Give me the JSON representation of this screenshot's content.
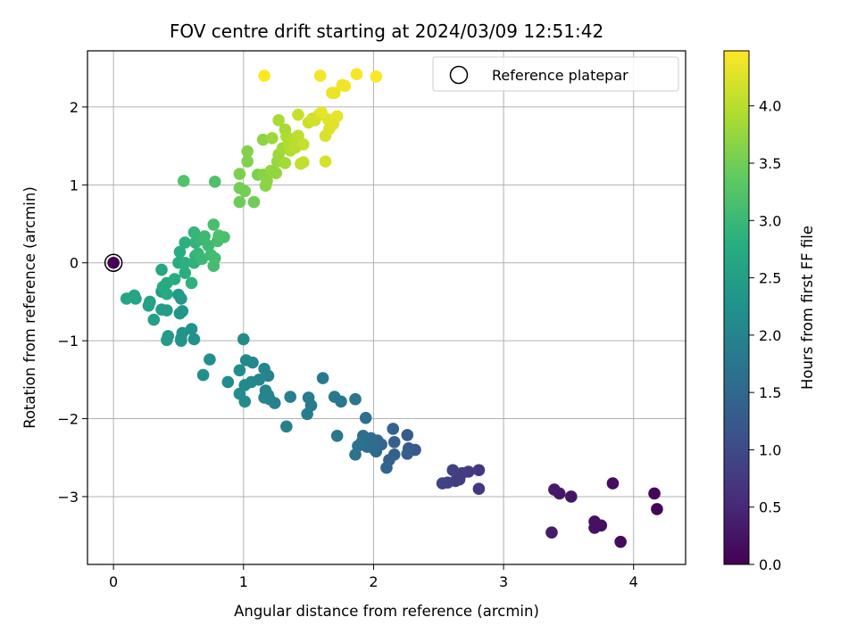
{
  "chart_data": {
    "type": "scatter",
    "title": "FOV centre drift starting at 2024/03/09 12:51:42",
    "xlabel": "Angular distance from reference (arcmin)",
    "ylabel": "Rotation from reference (arcmin)",
    "xlim": [
      -0.2,
      4.4
    ],
    "ylim": [
      -3.87,
      2.72
    ],
    "xticks": [
      "0",
      "1",
      "2",
      "3",
      "4"
    ],
    "xtick_values": [
      0,
      1,
      2,
      3,
      4
    ],
    "yticks": [
      "−3",
      "−2",
      "−1",
      "0",
      "1",
      "2"
    ],
    "ytick_values": [
      -3,
      -2,
      -1,
      0,
      1,
      2
    ],
    "grid": true,
    "legend": {
      "placement": "top-right",
      "entries": [
        "Reference platepar"
      ]
    },
    "reference_point": {
      "x": 0,
      "y": 0
    },
    "colormap": "viridis",
    "colorbar": {
      "label": "Hours from first FF file",
      "range": [
        0,
        4.48
      ],
      "ticks": [
        "0.0",
        "0.5",
        "1.0",
        "1.5",
        "2.0",
        "2.5",
        "3.0",
        "3.5",
        "4.0"
      ],
      "tick_values": [
        0,
        0.5,
        1.0,
        1.5,
        2.0,
        2.5,
        3.0,
        3.5,
        4.0
      ]
    },
    "points": [
      [
        0.0,
        0.0,
        0.0
      ],
      [
        4.18,
        -3.16,
        0.05
      ],
      [
        4.16,
        -2.96,
        0.08
      ],
      [
        3.9,
        -3.58,
        0.12
      ],
      [
        3.84,
        -2.83,
        0.15
      ],
      [
        3.75,
        -3.37,
        0.18
      ],
      [
        3.7,
        -3.32,
        0.2
      ],
      [
        3.7,
        -3.4,
        0.22
      ],
      [
        3.52,
        -3.0,
        0.25
      ],
      [
        3.43,
        -2.96,
        0.28
      ],
      [
        3.39,
        -2.91,
        0.3
      ],
      [
        3.37,
        -3.46,
        0.33
      ],
      [
        2.81,
        -2.66,
        0.7
      ],
      [
        2.81,
        -2.9,
        0.72
      ],
      [
        2.73,
        -2.68,
        0.75
      ],
      [
        2.68,
        -2.7,
        0.78
      ],
      [
        2.66,
        -2.78,
        0.8
      ],
      [
        2.63,
        -2.8,
        0.82
      ],
      [
        2.61,
        -2.66,
        0.85
      ],
      [
        2.57,
        -2.82,
        0.88
      ],
      [
        2.53,
        -2.83,
        0.9
      ],
      [
        2.32,
        -2.4,
        1.25
      ],
      [
        2.27,
        -2.38,
        1.28
      ],
      [
        2.26,
        -2.21,
        1.3
      ],
      [
        2.26,
        -2.45,
        1.32
      ],
      [
        2.16,
        -2.3,
        1.35
      ],
      [
        2.16,
        -2.46,
        1.38
      ],
      [
        2.15,
        -2.13,
        1.4
      ],
      [
        2.12,
        -2.53,
        1.42
      ],
      [
        2.1,
        -2.63,
        1.45
      ],
      [
        2.06,
        -2.33,
        1.47
      ],
      [
        2.03,
        -2.28,
        1.5
      ],
      [
        2.02,
        -2.42,
        1.52
      ],
      [
        2.0,
        -2.38,
        1.55
      ],
      [
        1.98,
        -2.25,
        1.57
      ],
      [
        1.95,
        -2.36,
        1.6
      ],
      [
        1.94,
        -1.99,
        1.62
      ],
      [
        1.92,
        -2.22,
        1.64
      ],
      [
        1.91,
        -2.3,
        1.66
      ],
      [
        1.88,
        -2.35,
        1.68
      ],
      [
        1.86,
        -2.46,
        1.7
      ],
      [
        1.86,
        -1.75,
        1.73
      ],
      [
        1.75,
        -1.78,
        1.75
      ],
      [
        1.72,
        -2.22,
        1.77
      ],
      [
        1.7,
        -1.72,
        1.79
      ],
      [
        1.61,
        -1.48,
        1.81
      ],
      [
        1.52,
        -1.83,
        1.83
      ],
      [
        1.5,
        -1.73,
        1.85
      ],
      [
        1.49,
        -1.94,
        1.87
      ],
      [
        1.36,
        -1.72,
        1.89
      ],
      [
        1.33,
        -2.1,
        1.91
      ],
      [
        1.24,
        -1.8,
        1.93
      ],
      [
        1.2,
        -1.75,
        1.95
      ],
      [
        1.19,
        -1.7,
        1.97
      ],
      [
        1.19,
        -1.45,
        1.99
      ],
      [
        1.17,
        -1.64,
        2.0
      ],
      [
        1.16,
        -1.36,
        2.02
      ],
      [
        1.16,
        -1.73,
        2.03
      ],
      [
        1.12,
        -1.5,
        2.05
      ],
      [
        1.07,
        -1.28,
        2.06
      ],
      [
        1.06,
        -1.53,
        2.08
      ],
      [
        1.02,
        -1.25,
        2.09
      ],
      [
        1.01,
        -1.78,
        2.11
      ],
      [
        1.01,
        -1.57,
        2.12
      ],
      [
        1.0,
        -0.98,
        2.14
      ],
      [
        0.97,
        -1.68,
        2.15
      ],
      [
        0.97,
        -1.38,
        2.17
      ],
      [
        0.88,
        -1.53,
        2.18
      ],
      [
        0.74,
        -1.24,
        2.2
      ],
      [
        0.69,
        -1.44,
        2.22
      ],
      [
        0.62,
        -0.98,
        2.24
      ],
      [
        0.6,
        -0.85,
        2.26
      ],
      [
        0.53,
        -0.9,
        2.28
      ],
      [
        0.52,
        -0.97,
        2.3
      ],
      [
        0.52,
        -1.0,
        2.32
      ],
      [
        0.51,
        -0.65,
        2.34
      ],
      [
        0.53,
        -0.62,
        2.36
      ],
      [
        0.52,
        -0.46,
        2.38
      ],
      [
        0.5,
        -0.41,
        2.4
      ],
      [
        0.42,
        -0.94,
        2.42
      ],
      [
        0.41,
        -0.99,
        2.44
      ],
      [
        0.41,
        -0.61,
        2.46
      ],
      [
        0.37,
        -0.6,
        2.48
      ],
      [
        0.37,
        -0.37,
        2.5
      ],
      [
        0.31,
        -0.73,
        2.52
      ],
      [
        0.28,
        -0.5,
        2.54
      ],
      [
        0.27,
        -0.55,
        2.56
      ],
      [
        0.17,
        -0.46,
        2.58
      ],
      [
        0.16,
        -0.42,
        2.6
      ],
      [
        0.1,
        -0.46,
        2.62
      ],
      [
        0.37,
        -0.09,
        2.65
      ],
      [
        0.41,
        -0.26,
        2.68
      ],
      [
        0.38,
        -0.31,
        2.7
      ],
      [
        0.41,
        -0.4,
        2.72
      ],
      [
        0.47,
        -0.21,
        2.74
      ],
      [
        0.5,
        0.0,
        2.76
      ],
      [
        0.51,
        0.14,
        2.78
      ],
      [
        0.55,
        -0.13,
        2.8
      ],
      [
        0.55,
        0.0,
        2.82
      ],
      [
        0.55,
        0.26,
        2.84
      ],
      [
        0.6,
        -0.26,
        2.86
      ],
      [
        0.62,
        0.0,
        2.88
      ],
      [
        0.63,
        0.09,
        2.9
      ],
      [
        0.63,
        0.26,
        2.92
      ],
      [
        0.62,
        0.39,
        2.94
      ],
      [
        0.65,
        0.12,
        2.96
      ],
      [
        0.68,
        0.3,
        2.98
      ],
      [
        0.68,
        0.05,
        3.0
      ],
      [
        0.7,
        0.34,
        3.02
      ],
      [
        0.73,
        0.22,
        3.04
      ],
      [
        0.75,
        0.1,
        3.06
      ],
      [
        0.78,
        0.06,
        3.08
      ],
      [
        0.77,
        -0.04,
        3.1
      ],
      [
        0.8,
        0.28,
        3.12
      ],
      [
        0.77,
        0.49,
        3.14
      ],
      [
        0.85,
        0.33,
        3.16
      ],
      [
        0.81,
        0.35,
        3.18
      ],
      [
        0.78,
        1.04,
        3.2
      ],
      [
        0.54,
        1.05,
        3.22
      ],
      [
        0.97,
        0.78,
        3.45
      ],
      [
        1.08,
        0.78,
        3.48
      ],
      [
        0.97,
        0.96,
        3.5
      ],
      [
        1.01,
        0.92,
        3.52
      ],
      [
        1.11,
        1.13,
        3.55
      ],
      [
        0.97,
        1.14,
        3.58
      ],
      [
        1.03,
        1.3,
        3.6
      ],
      [
        1.03,
        1.43,
        3.62
      ],
      [
        1.15,
        1.13,
        3.65
      ],
      [
        1.17,
        0.99,
        3.67
      ],
      [
        1.18,
        1.05,
        3.69
      ],
      [
        1.15,
        1.58,
        3.71
      ],
      [
        1.21,
        1.18,
        3.73
      ],
      [
        1.25,
        1.15,
        3.75
      ],
      [
        1.26,
        1.3,
        3.77
      ],
      [
        1.27,
        1.39,
        3.79
      ],
      [
        1.22,
        1.6,
        3.81
      ],
      [
        1.3,
        1.47,
        3.83
      ],
      [
        1.32,
        1.28,
        3.85
      ],
      [
        1.32,
        1.71,
        3.87
      ],
      [
        1.27,
        1.83,
        3.89
      ],
      [
        1.33,
        1.62,
        3.91
      ],
      [
        1.35,
        1.52,
        3.93
      ],
      [
        1.36,
        1.44,
        3.95
      ],
      [
        1.38,
        1.59,
        3.97
      ],
      [
        1.4,
        1.55,
        3.99
      ],
      [
        1.4,
        1.48,
        4.01
      ],
      [
        1.42,
        1.63,
        4.03
      ],
      [
        1.44,
        1.27,
        4.05
      ],
      [
        1.46,
        1.29,
        4.07
      ],
      [
        1.46,
        1.52,
        4.09
      ],
      [
        1.42,
        1.9,
        4.11
      ],
      [
        1.5,
        1.8,
        4.13
      ],
      [
        1.53,
        1.85,
        4.15
      ],
      [
        1.55,
        1.83,
        4.17
      ],
      [
        1.58,
        1.9,
        4.19
      ],
      [
        1.63,
        1.3,
        4.21
      ],
      [
        1.63,
        1.63,
        4.23
      ],
      [
        1.66,
        1.72,
        4.25
      ],
      [
        1.65,
        1.84,
        4.27
      ],
      [
        1.69,
        1.78,
        4.29
      ],
      [
        1.72,
        1.88,
        4.31
      ],
      [
        1.6,
        1.93,
        4.32
      ],
      [
        1.7,
        2.18,
        4.34
      ],
      [
        1.68,
        2.18,
        4.36
      ],
      [
        1.76,
        2.28,
        4.38
      ],
      [
        1.78,
        2.27,
        4.4
      ],
      [
        1.59,
        2.4,
        4.42
      ],
      [
        1.87,
        2.42,
        4.44
      ],
      [
        2.02,
        2.39,
        4.46
      ],
      [
        1.16,
        2.4,
        4.48
      ]
    ]
  }
}
